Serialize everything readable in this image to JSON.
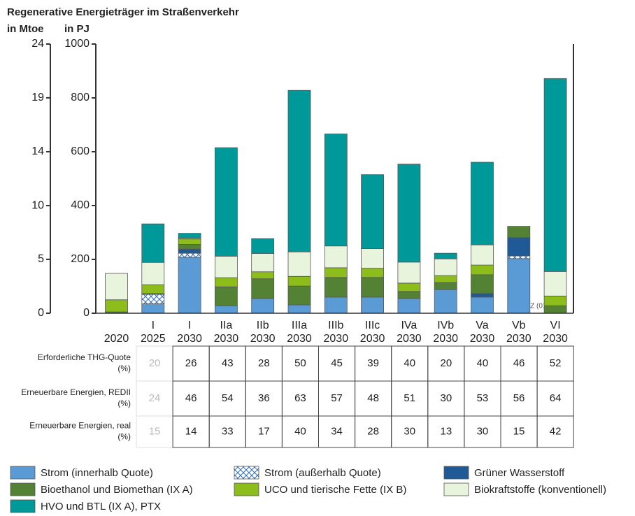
{
  "chart_data": {
    "type": "bar",
    "stacked": true,
    "title": "Regenerative Energieträger im Straßenverkehr",
    "ylabel": "in PJ",
    "y2label": "in Mtoe",
    "annotation": "© DBFZ (01/2021)",
    "categories": [
      null,
      "I",
      "I",
      "IIa",
      "IIb",
      "IIIa",
      "IIIb",
      "IIIc",
      "IVa",
      "IVb",
      "Va",
      "Vb",
      "VI"
    ],
    "years": [
      "2020",
      "2025",
      "2030",
      "2030",
      "2030",
      "2030",
      "2030",
      "2030",
      "2030",
      "2030",
      "2030",
      "2030",
      "2030"
    ],
    "ylim": [
      0,
      1000
    ],
    "yticks": [
      0,
      200,
      400,
      600,
      800,
      1000
    ],
    "y2lim": [
      0,
      23.88
    ],
    "y2ticks": [
      0,
      {
        "value": 4.78,
        "label": "5"
      },
      {
        "value": 9.55,
        "label": "10"
      },
      {
        "value": 14.33,
        "label": "14"
      },
      {
        "value": 19.11,
        "label": "19"
      },
      {
        "value": 23.88,
        "label": "24"
      }
    ],
    "grid": false,
    "series": [
      {
        "name": "Strom (innerhalb Quote)",
        "color": "#5b9bd5",
        "values": [
          0,
          35,
          208,
          28,
          55,
          31,
          60,
          60,
          55,
          88,
          60,
          203,
          0
        ]
      },
      {
        "name": "Strom (außerhalb Quote)",
        "color": "#2f6db5",
        "pattern": "crosshatch",
        "values": [
          0,
          35,
          15,
          0,
          0,
          0,
          0,
          0,
          0,
          0,
          0,
          10,
          0
        ]
      },
      {
        "name": "Grüner Wasserstoff",
        "color": "#1f5a96",
        "values": [
          0,
          0,
          15,
          0,
          0,
          0,
          0,
          0,
          0,
          0,
          13,
          68,
          0
        ]
      },
      {
        "name": "Bioethanol und Biomethan (IX A)",
        "color": "#548235",
        "values": [
          5,
          3,
          18,
          70,
          73,
          70,
          73,
          73,
          26,
          26,
          70,
          42,
          28
        ]
      },
      {
        "name": "UCO und tierische Fette (IX B)",
        "color": "#8cbd1a",
        "values": [
          45,
          33,
          20,
          34,
          26,
          36,
          36,
          34,
          31,
          26,
          36,
          0,
          36
        ]
      },
      {
        "name": "Biokraftstoffe (konventionell)",
        "color": "#e8f5dc",
        "values": [
          98,
          83,
          3,
          80,
          68,
          91,
          81,
          73,
          78,
          62,
          75,
          0,
          91
        ]
      },
      {
        "name": "HVO und BTL (IX A), PTX",
        "color": "#009999",
        "values": [
          0,
          143,
          18,
          403,
          55,
          600,
          416,
          275,
          364,
          21,
          307,
          0,
          717
        ]
      }
    ]
  },
  "table": {
    "rows": [
      {
        "label": [
          "Erforderliche THG-Quote",
          "(%)"
        ],
        "values": [
          20,
          26,
          43,
          28,
          50,
          45,
          39,
          40,
          20,
          40,
          46,
          52
        ]
      },
      {
        "label": [
          "Erneuerbare Energien, REDII",
          "(%)"
        ],
        "values": [
          24,
          46,
          54,
          36,
          63,
          57,
          48,
          51,
          30,
          53,
          56,
          64
        ]
      },
      {
        "label": [
          "Erneuerbare Energien, real",
          "(%)"
        ],
        "values": [
          15,
          14,
          33,
          17,
          40,
          34,
          28,
          30,
          13,
          30,
          15,
          42
        ]
      }
    ]
  }
}
